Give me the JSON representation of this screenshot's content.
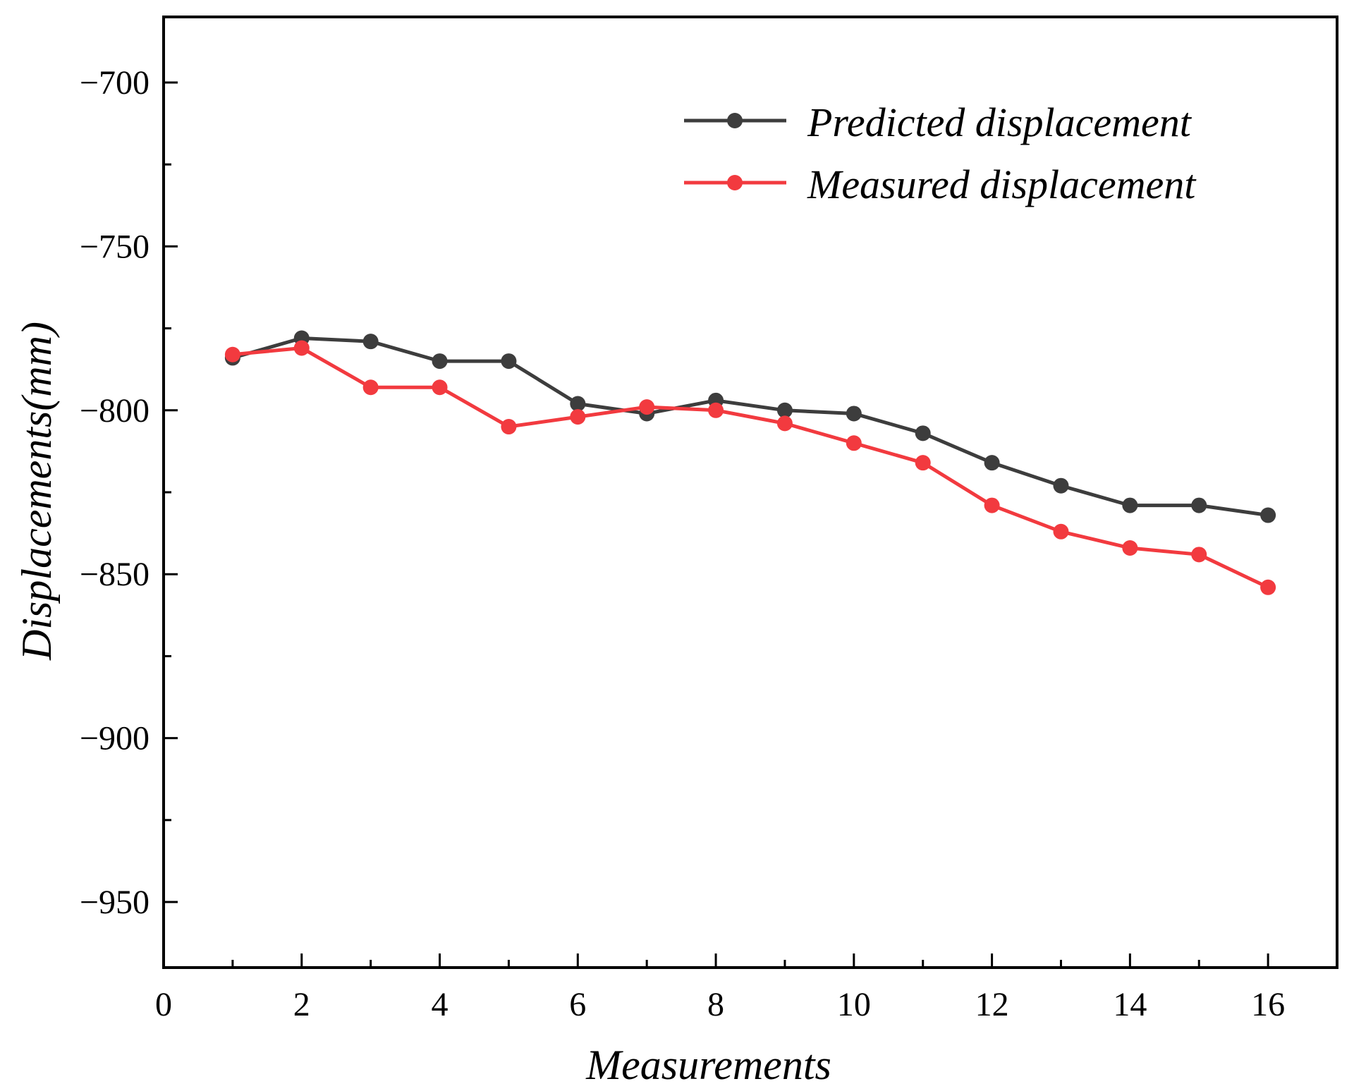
{
  "chart_data": {
    "type": "line",
    "title": "",
    "xlabel": "Measurements",
    "ylabel": "Displacements(mm)",
    "xlim": [
      0,
      17
    ],
    "ylim": [
      -970,
      -680
    ],
    "xticks": [
      0,
      2,
      4,
      6,
      8,
      10,
      12,
      14,
      16
    ],
    "yticks": [
      -700,
      -750,
      -800,
      -850,
      -900,
      -950
    ],
    "xtick_labels": [
      "0",
      "2",
      "4",
      "6",
      "8",
      "10",
      "12",
      "14",
      "16"
    ],
    "ytick_labels": [
      "−700",
      "−750",
      "−800",
      "−850",
      "−900",
      "−950"
    ],
    "grid": false,
    "legend_position": "top-right",
    "x": [
      1,
      2,
      3,
      4,
      5,
      6,
      7,
      8,
      9,
      10,
      11,
      12,
      13,
      14,
      15,
      16
    ],
    "series": [
      {
        "name": "Predicted displacement",
        "color": "#3d3d3d",
        "values": [
          -784,
          -778,
          -779,
          -785,
          -785,
          -798,
          -801,
          -797,
          -800,
          -801,
          -807,
          -816,
          -823,
          -829,
          -829,
          -832
        ]
      },
      {
        "name": "Measured displacement",
        "color": "#f23a3f",
        "values": [
          -783,
          -781,
          -793,
          -793,
          -805,
          -802,
          -799,
          -800,
          -804,
          -810,
          -816,
          -829,
          -837,
          -842,
          -844,
          -854
        ]
      }
    ]
  }
}
